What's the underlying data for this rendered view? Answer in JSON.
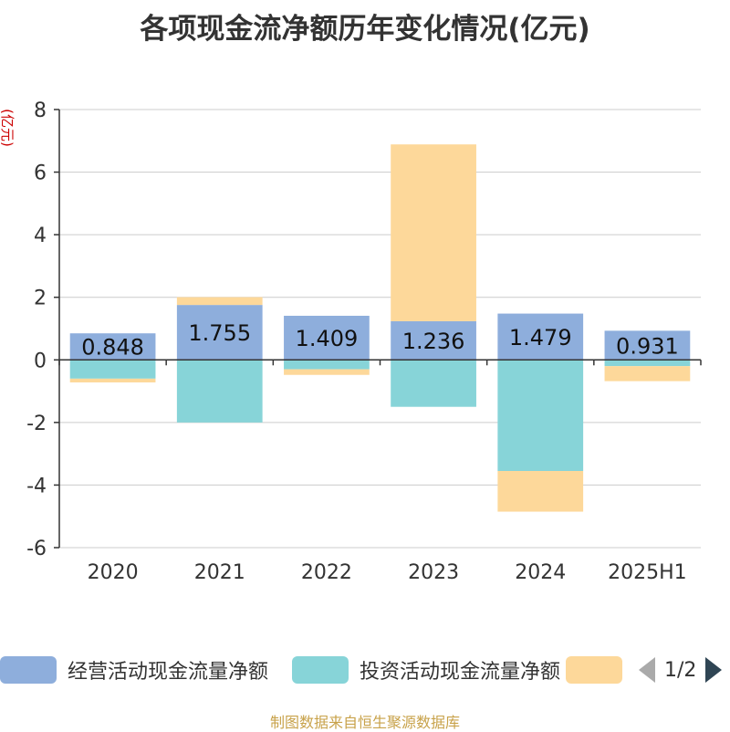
{
  "title": "各项现金流净额历年变化情况(亿元)",
  "source": "制图数据来自恒生聚源数据库",
  "colors": {
    "operating": "#8eaedc",
    "investing": "#87d4d8",
    "financing": "#fdd89a",
    "axis": "#333333",
    "grid": "#cccccc",
    "ylabel": "#cc0000"
  },
  "legend": {
    "items": [
      "经营活动现金流量净额",
      "投资活动现金流量净额",
      ""
    ],
    "pager": "1/2"
  },
  "chart_data": {
    "type": "bar",
    "stacked": true,
    "categories": [
      "2020",
      "2021",
      "2022",
      "2023",
      "2024",
      "2025H1"
    ],
    "series": [
      {
        "name": "经营活动现金流量净额",
        "values": [
          0.848,
          1.755,
          1.409,
          1.236,
          1.479,
          0.931
        ],
        "labels": [
          "0.848",
          "1.755",
          "1.409",
          "1.236",
          "1.479",
          "0.931"
        ]
      },
      {
        "name": "投资活动现金流量净额",
        "values": [
          -0.6,
          -2.0,
          -0.3,
          -1.5,
          -3.55,
          -0.2
        ]
      },
      {
        "name": "",
        "values": [
          -0.12,
          0.25,
          -0.18,
          5.65,
          -1.3,
          -0.48
        ]
      }
    ],
    "ylabel": "(亿元)",
    "yticks": [
      "8",
      "6",
      "4",
      "2",
      "0",
      "-2",
      "-4",
      "-6"
    ],
    "ylim": [
      -6,
      8
    ],
    "grid": true,
    "legend_position": "bottom"
  }
}
